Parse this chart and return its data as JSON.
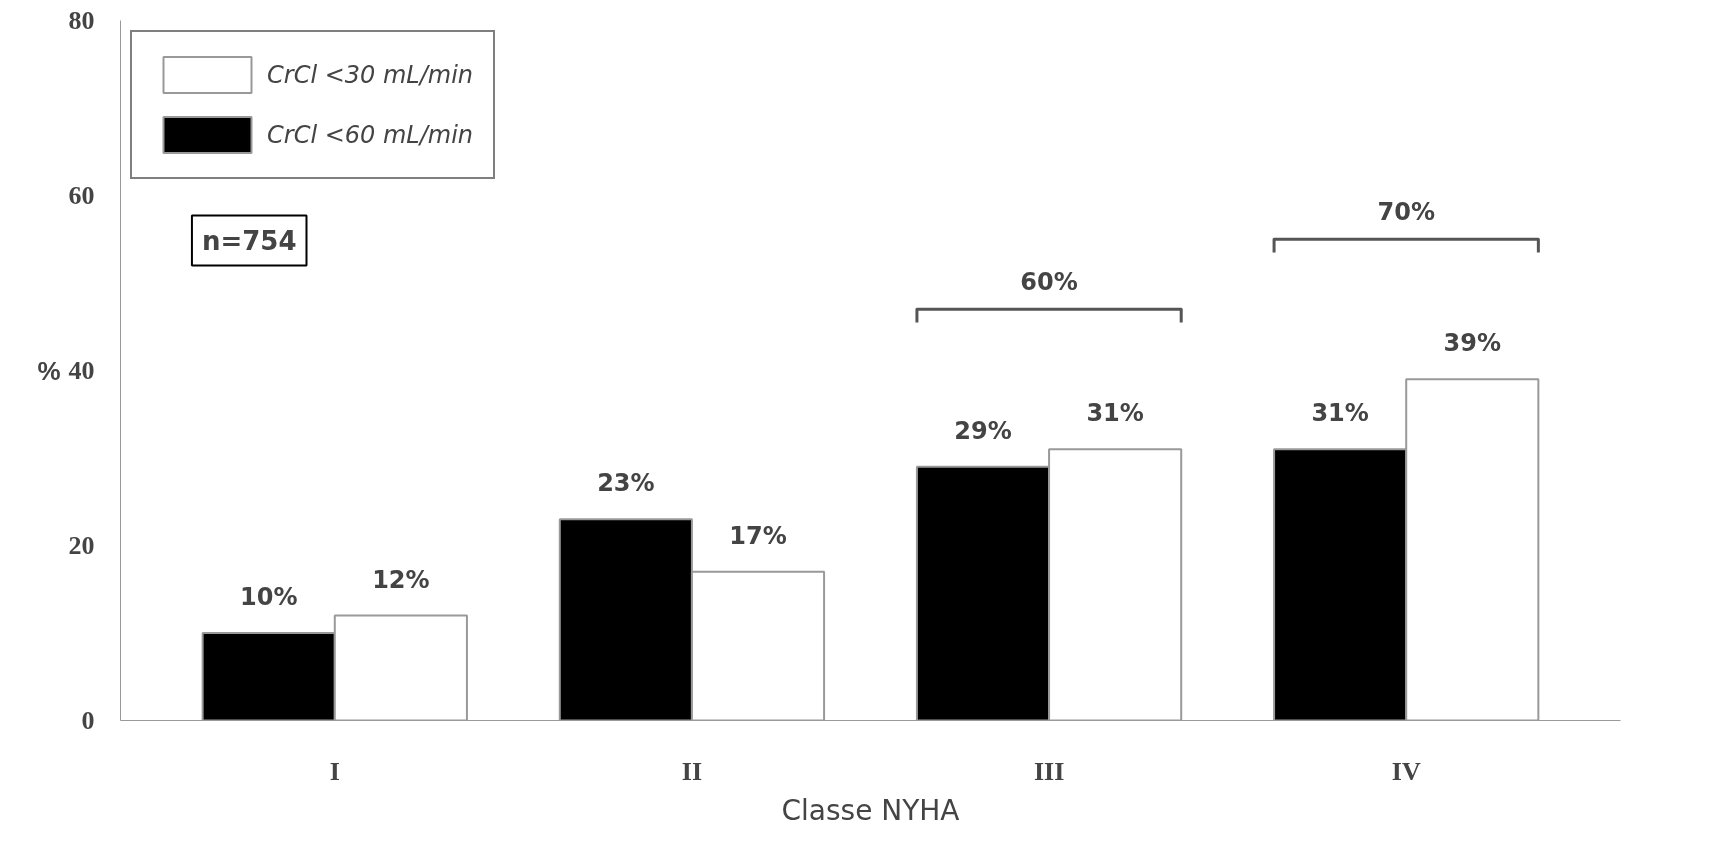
{
  "chart_data": {
    "type": "bar",
    "xlabel": "Classe NYHA",
    "ylabel": "%",
    "categories": [
      "I",
      "II",
      "III",
      "IV"
    ],
    "series": [
      {
        "name": "CrCl <30 mL/min",
        "color": "#ffffff",
        "values": [
          12,
          17,
          31,
          39
        ],
        "value_labels": [
          "12%",
          "17%",
          "31%",
          "39%"
        ]
      },
      {
        "name": "CrCl <60 mL/min",
        "color": "#000000",
        "values": [
          10,
          23,
          29,
          31
        ],
        "value_labels": [
          "10%",
          "23%",
          "29%",
          "31%"
        ]
      }
    ],
    "ylim": [
      0,
      80
    ],
    "yticks": [
      0,
      20,
      40,
      60,
      80
    ],
    "grid": false,
    "legend": "top left",
    "annotations": [
      "n=754",
      "60%",
      "70%"
    ]
  }
}
